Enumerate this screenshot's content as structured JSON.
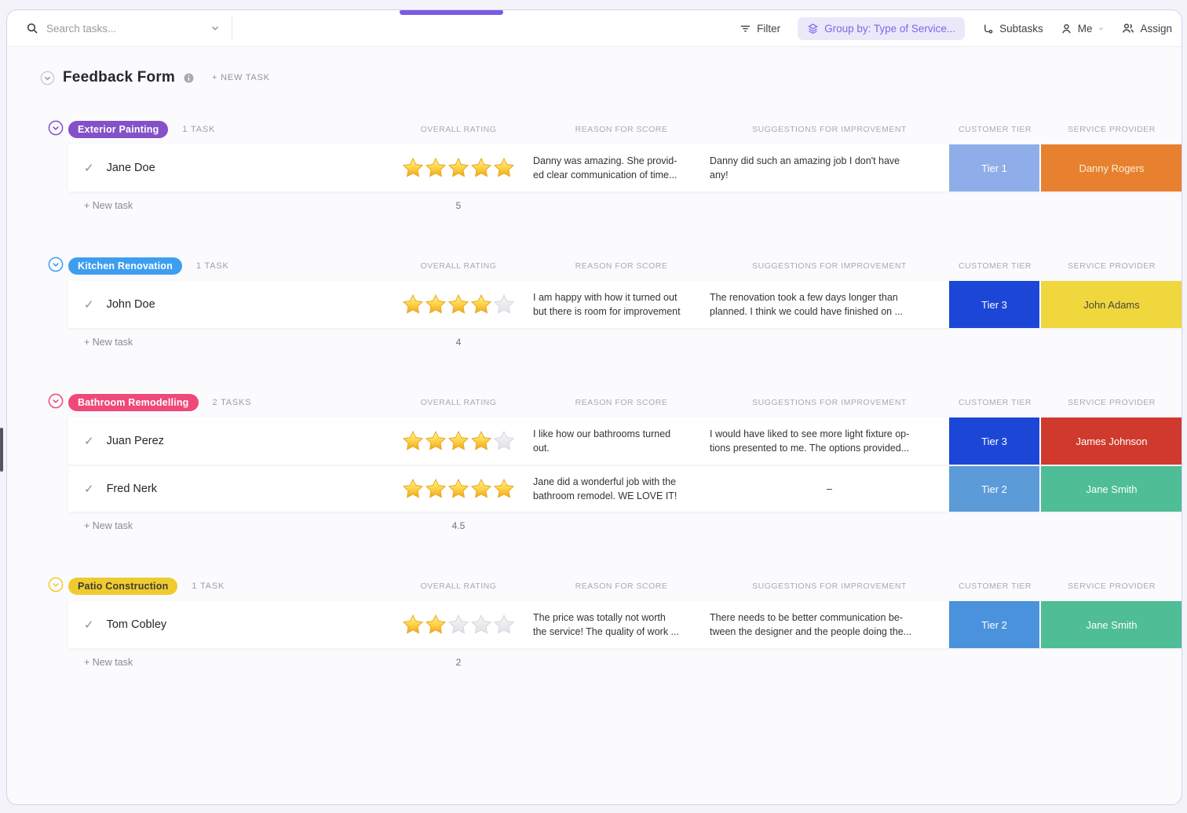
{
  "toolbar": {
    "search_placeholder": "Search tasks...",
    "filter": "Filter",
    "group_by": "Group by: Type of Service...",
    "subtasks": "Subtasks",
    "me": "Me",
    "assign": "Assign"
  },
  "page": {
    "title": "Feedback Form",
    "new_task": "+ NEW TASK"
  },
  "columns": [
    "OVERALL RATING",
    "REASON FOR SCORE",
    "SUGGESTIONS FOR IMPROVEMENT",
    "CUSTOMER TIER",
    "SERVICE PROVIDER"
  ],
  "add_task_label": "+ New task",
  "colors": {
    "accent": "#7a5ae3",
    "star_gold": "#F5B21B",
    "star_empty": "#E6E6EB"
  },
  "groups": [
    {
      "name": "Exterior Painting",
      "badge_bg": "#8351C8",
      "badge_fg": "#ffffff",
      "count_label": "1 TASK",
      "sum": "5",
      "tasks": [
        {
          "name": "Jane Doe",
          "rating": 5,
          "reason": "Danny was amazing. She provid-\ned clear communication of time...",
          "suggestion": "Danny did such an amazing job I don't have\nany!",
          "tier_label": "Tier 1",
          "tier_bg": "#8FAEE9",
          "tier_fg": "#ffffff",
          "provider_label": "Danny Rogers",
          "provider_bg": "#E8812F",
          "provider_fg": "#FCEFD4"
        }
      ]
    },
    {
      "name": "Kitchen Renovation",
      "badge_bg": "#3D9EF0",
      "badge_fg": "#ffffff",
      "count_label": "1 TASK",
      "sum": "4",
      "tasks": [
        {
          "name": "John Doe",
          "rating": 4,
          "reason": "I am happy with how it turned out\nbut there is room for improvement",
          "suggestion": "The renovation took a few days longer than\nplanned. I think we could have finished on ...",
          "tier_label": "Tier 3",
          "tier_bg": "#1C47D6",
          "tier_fg": "#ffffff",
          "provider_label": "John Adams",
          "provider_bg": "#F0D73E",
          "provider_fg": "#4A463A"
        }
      ]
    },
    {
      "name": "Bathroom Remodelling",
      "badge_bg": "#EF4879",
      "badge_fg": "#ffffff",
      "count_label": "2 TASKS",
      "sum": "4.5",
      "tasks": [
        {
          "name": "Juan Perez",
          "rating": 4,
          "reason": "I like how our bathrooms turned\nout.",
          "suggestion": "I would have liked to see more light fixture op-\ntions presented to me. The options provided...",
          "tier_label": "Tier 3",
          "tier_bg": "#1C47D6",
          "tier_fg": "#ffffff",
          "provider_label": "James Johnson",
          "provider_bg": "#D03A2E",
          "provider_fg": "#ffffff"
        },
        {
          "name": "Fred Nerk",
          "rating": 5,
          "reason": "Jane did a wonderful job with the\nbathroom remodel. WE LOVE IT!",
          "suggestion": "–",
          "tier_label": "Tier 2",
          "tier_bg": "#5B9BD8",
          "tier_fg": "#ffffff",
          "provider_label": "Jane Smith",
          "provider_bg": "#4FBD96",
          "provider_fg": "#ffffff"
        }
      ]
    },
    {
      "name": "Patio Construction",
      "badge_bg": "#EFCB30",
      "badge_fg": "#3F3C35",
      "count_label": "1 TASK",
      "sum": "2",
      "tasks": [
        {
          "name": "Tom Cobley",
          "rating": 2,
          "reason": "The price was totally not worth\nthe service! The quality of work ...",
          "suggestion": "There needs to be better communication be-\ntween the designer and the people doing the...",
          "tier_label": "Tier 2",
          "tier_bg": "#4B92DC",
          "tier_fg": "#ffffff",
          "provider_label": "Jane Smith",
          "provider_bg": "#4FBD96",
          "provider_fg": "#ffffff"
        }
      ]
    }
  ]
}
